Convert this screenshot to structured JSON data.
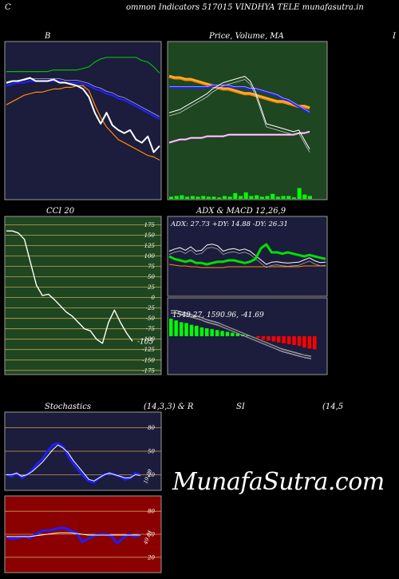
{
  "header": {
    "corner_letter": "C",
    "title": "ommon  Indicators 517015 VINDHYA TELE munafasutra.in",
    "right_letter": "I"
  },
  "watermark": "MunafaSutra.com",
  "colors": {
    "navy_panel": "#1c1c3c",
    "green_panel": "#1e4620",
    "red_panel": "#8b0000",
    "price": "#ffffff",
    "ma_blue": "#2020ff",
    "ma_orange": "#ff8c00",
    "ma_green": "#00c000",
    "volume": "#00ff00",
    "adx_green": "#00e000",
    "macd_pos": "#00ff00",
    "macd_neg": "#ff0000",
    "stoch_blue": "#1e1eff"
  },
  "chart_data": [
    {
      "id": "bollinger",
      "type": "line",
      "title": "B",
      "series": [
        {
          "values": [
            74,
            75,
            75,
            76,
            77,
            75,
            75,
            75,
            76,
            74,
            74,
            73,
            72,
            70,
            65,
            55,
            48,
            55,
            47,
            44,
            42,
            44,
            38,
            36,
            40,
            30,
            34
          ]
        },
        {
          "values": [
            81,
            81,
            81,
            81,
            81,
            81,
            81,
            81,
            82,
            82,
            82,
            82,
            82,
            83,
            84,
            87,
            89,
            90,
            90,
            90,
            90,
            90,
            90,
            88,
            87,
            84,
            80
          ]
        },
        {
          "values": [
            72,
            73,
            74,
            74,
            75,
            75,
            75,
            75,
            75,
            75,
            74,
            74,
            74,
            73,
            72,
            70,
            69,
            67,
            66,
            64,
            63,
            61,
            59,
            57,
            55,
            53,
            51
          ]
        },
        {
          "values": [
            60,
            62,
            64,
            66,
            67,
            68,
            68,
            69,
            70,
            70,
            71,
            71,
            72,
            72,
            69,
            60,
            52,
            46,
            42,
            38,
            36,
            34,
            32,
            30,
            28,
            27,
            25
          ]
        }
      ]
    },
    {
      "id": "price-ma",
      "type": "line",
      "title": "Price,  Volume,  MA",
      "series": [
        {
          "values": [
            55,
            56,
            57,
            59,
            61,
            63,
            65,
            67,
            70,
            72,
            74,
            75,
            76,
            77,
            78,
            75,
            68,
            58,
            48,
            47,
            46,
            45,
            44,
            43,
            44,
            38,
            32
          ]
        },
        {
          "values": [
            78,
            77,
            77,
            76,
            76,
            75,
            74,
            73,
            72,
            71,
            70,
            70,
            69,
            68,
            67,
            67,
            66,
            65,
            64,
            63,
            62,
            62,
            61,
            60,
            59,
            59,
            58
          ]
        },
        {
          "values": [
            71,
            71,
            71,
            71,
            71,
            71,
            71,
            71,
            72,
            72,
            72,
            72,
            71,
            71,
            71,
            70,
            70,
            69,
            68,
            67,
            66,
            64,
            63,
            61,
            59,
            57,
            55
          ]
        },
        {
          "values": [
            36,
            37,
            38,
            38,
            39,
            39,
            39,
            40,
            40,
            40,
            40,
            41,
            41,
            41,
            41,
            41,
            41,
            41,
            41,
            41,
            41,
            41,
            41,
            41,
            42,
            42,
            43
          ]
        },
        {
          "values": [
            3,
            4,
            5,
            3,
            4,
            3,
            4,
            3,
            3,
            2,
            4,
            3,
            8,
            4,
            9,
            4,
            5,
            3,
            4,
            7,
            3,
            4,
            4,
            2,
            15,
            6,
            4
          ]
        }
      ]
    },
    {
      "id": "cci",
      "type": "line",
      "title": "CCI 20",
      "yticks": [
        175,
        150,
        125,
        100,
        75,
        50,
        25,
        0,
        -25,
        -50,
        -75,
        -100,
        -125,
        -150,
        -175
      ],
      "ylim": [
        -185,
        195
      ],
      "last_label": "-105",
      "series": [
        {
          "values": [
            160,
            160,
            155,
            140,
            85,
            30,
            5,
            8,
            -5,
            -20,
            -35,
            -45,
            -60,
            -75,
            -80,
            -100,
            -110,
            -60,
            -30,
            -60,
            -85,
            -105
          ]
        }
      ]
    },
    {
      "id": "adx",
      "type": "line",
      "title": "ADX  & MACD 12,26,9",
      "label": "ADX: 27.73  +DY: 14.88  -DY: 26.31",
      "series": [
        {
          "values": [
            30,
            28,
            27,
            26,
            27,
            25,
            25,
            24,
            25,
            26,
            26,
            27,
            27,
            26,
            25,
            26,
            28,
            36,
            39,
            33,
            33,
            32,
            33,
            32,
            31,
            30,
            31,
            30,
            29,
            28
          ]
        },
        {
          "values": [
            70,
            75,
            78,
            72,
            80,
            70,
            72,
            84,
            86,
            82,
            70,
            74,
            76,
            72,
            75,
            70,
            60,
            50,
            40,
            45,
            46,
            44,
            43,
            44,
            45,
            50,
            55,
            48,
            44,
            45
          ]
        },
        {
          "values": [
            40,
            39,
            38,
            38,
            37,
            37,
            36,
            36,
            36,
            36,
            36,
            37,
            37,
            37,
            37,
            37,
            37,
            37,
            37,
            37,
            37,
            37,
            37,
            37,
            37,
            38,
            38,
            38,
            38,
            38
          ]
        }
      ]
    },
    {
      "id": "macd",
      "type": "bar",
      "label": "1549.27,  1590.96,  -41.69",
      "series": [
        {
          "values": [
            20,
            18,
            16,
            15,
            13,
            12,
            10,
            9,
            8,
            7,
            6,
            5,
            4,
            3,
            2,
            1,
            0,
            -2,
            -4,
            -5,
            -6,
            -7,
            -8,
            -9,
            -10,
            -11,
            -13,
            -14,
            -15
          ]
        }
      ]
    },
    {
      "id": "stochastics",
      "type": "line",
      "title": "Stochastics",
      "params": "(14,3,3) & R",
      "yticks": [
        80,
        50,
        20
      ],
      "last_label": "19.09",
      "series": [
        {
          "values": [
            20,
            18,
            22,
            16,
            20,
            26,
            34,
            40,
            50,
            58,
            60,
            56,
            44,
            34,
            26,
            18,
            12,
            10,
            16,
            20,
            22,
            20,
            18,
            14,
            16,
            22,
            20
          ]
        },
        {
          "values": [
            20,
            20,
            22,
            18,
            20,
            24,
            30,
            36,
            44,
            52,
            58,
            54,
            48,
            38,
            30,
            22,
            14,
            12,
            16,
            20,
            22,
            20,
            18,
            16,
            16,
            20,
            19
          ]
        }
      ]
    },
    {
      "id": "rsi",
      "type": "line",
      "title": "SI",
      "params": "(14,5",
      "yticks": [
        80,
        50,
        20
      ],
      "last_label": "49.81",
      "series": [
        {
          "values": [
            46,
            44,
            45,
            47,
            45,
            50,
            54,
            55,
            56,
            58,
            58,
            55,
            52,
            40,
            44,
            48,
            50,
            50,
            48,
            38,
            45,
            50,
            47,
            49
          ]
        },
        {
          "values": [
            47,
            47,
            47,
            47,
            47,
            48,
            49,
            50,
            51,
            52,
            52,
            52,
            51,
            50,
            49,
            49,
            49,
            49,
            49,
            49,
            49,
            49,
            49,
            49
          ]
        }
      ]
    }
  ]
}
